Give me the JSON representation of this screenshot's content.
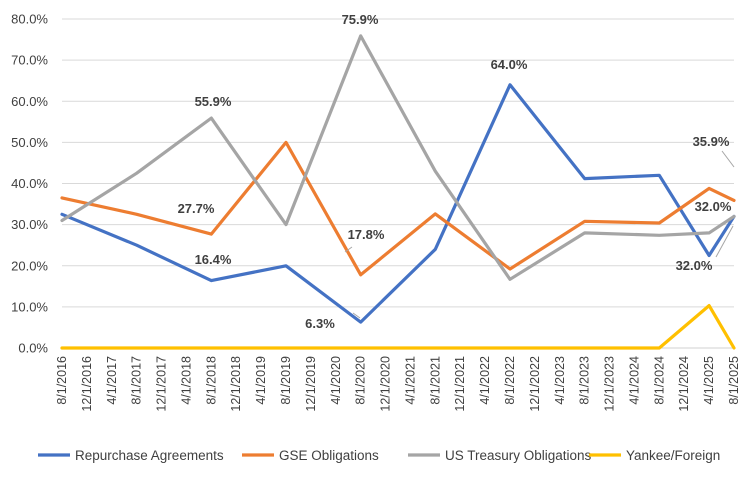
{
  "chart_data": {
    "type": "line",
    "title": "",
    "xlabel": "",
    "ylabel": "",
    "ylim": [
      0,
      80
    ],
    "yticks": [
      0,
      10,
      20,
      30,
      40,
      50,
      60,
      70,
      80
    ],
    "ytick_labels": [
      "0.0%",
      "10.0%",
      "20.0%",
      "30.0%",
      "40.0%",
      "50.0%",
      "60.0%",
      "70.0%",
      "80.0%"
    ],
    "categories": [
      "8/1/2016",
      "12/1/2016",
      "4/1/2017",
      "8/1/2017",
      "12/1/2017",
      "4/1/2018",
      "8/1/2018",
      "12/1/2018",
      "4/1/2019",
      "8/1/2019",
      "12/1/2019",
      "4/1/2020",
      "8/1/2020",
      "12/1/2020",
      "4/1/2021",
      "8/1/2021",
      "12/1/2021",
      "4/1/2022",
      "8/1/2022",
      "12/1/2022",
      "4/1/2023",
      "8/1/2023",
      "12/1/2023",
      "4/1/2024",
      "8/1/2024",
      "12/1/2024",
      "4/1/2025",
      "8/1/2025"
    ],
    "grid": true,
    "legend_position": "bottom",
    "series": [
      {
        "name": "Repurchase Agreements",
        "color": "#4472C4",
        "points": [
          [
            0,
            32.5
          ],
          [
            3,
            25.0
          ],
          [
            6,
            16.4
          ],
          [
            9,
            20.0
          ],
          [
            12,
            6.3
          ],
          [
            15,
            24.0
          ],
          [
            18,
            64.0
          ],
          [
            21,
            41.2
          ],
          [
            24,
            42.0
          ],
          [
            26,
            22.5
          ],
          [
            27,
            32.0
          ]
        ]
      },
      {
        "name": "GSE Obligations",
        "color": "#ED7D31",
        "points": [
          [
            0,
            36.5
          ],
          [
            3,
            32.5
          ],
          [
            6,
            27.7
          ],
          [
            9,
            50.0
          ],
          [
            12,
            17.8
          ],
          [
            15,
            32.6
          ],
          [
            18,
            19.2
          ],
          [
            21,
            30.8
          ],
          [
            24,
            30.4
          ],
          [
            26,
            38.8
          ],
          [
            27,
            35.9
          ]
        ]
      },
      {
        "name": "US Treasury Obligations",
        "color": "#A5A5A5",
        "points": [
          [
            0,
            31.0
          ],
          [
            3,
            42.5
          ],
          [
            6,
            55.9
          ],
          [
            9,
            30.0
          ],
          [
            12,
            75.9
          ],
          [
            15,
            43.0
          ],
          [
            18,
            16.7
          ],
          [
            21,
            28.0
          ],
          [
            24,
            27.4
          ],
          [
            26,
            28.0
          ],
          [
            27,
            32.0
          ]
        ]
      },
      {
        "name": "Yankee/Foreign",
        "color": "#FFC000",
        "points": [
          [
            0,
            0
          ],
          [
            3,
            0
          ],
          [
            6,
            0
          ],
          [
            9,
            0
          ],
          [
            12,
            0
          ],
          [
            15,
            0
          ],
          [
            18,
            0
          ],
          [
            21,
            0
          ],
          [
            24,
            0
          ],
          [
            26,
            10.3
          ],
          [
            27,
            0
          ]
        ]
      }
    ],
    "annotations": [
      {
        "text": "55.9%",
        "series": 2,
        "point": 6
      },
      {
        "text": "27.7%",
        "series": 1,
        "point": 6
      },
      {
        "text": "16.4%",
        "series": 0,
        "point": 6
      },
      {
        "text": "75.9%",
        "series": 2,
        "point": 12
      },
      {
        "text": "17.8%",
        "series": 1,
        "point": 12
      },
      {
        "text": "6.3%",
        "series": 0,
        "point": 12
      },
      {
        "text": "64.0%",
        "series": 0,
        "point": 18
      },
      {
        "text": "35.9%",
        "series": 1,
        "point": 10
      },
      {
        "text": "32.0%",
        "series": 0,
        "point": 10
      },
      {
        "text": "32.0%",
        "series": 2,
        "point": 10
      }
    ]
  }
}
